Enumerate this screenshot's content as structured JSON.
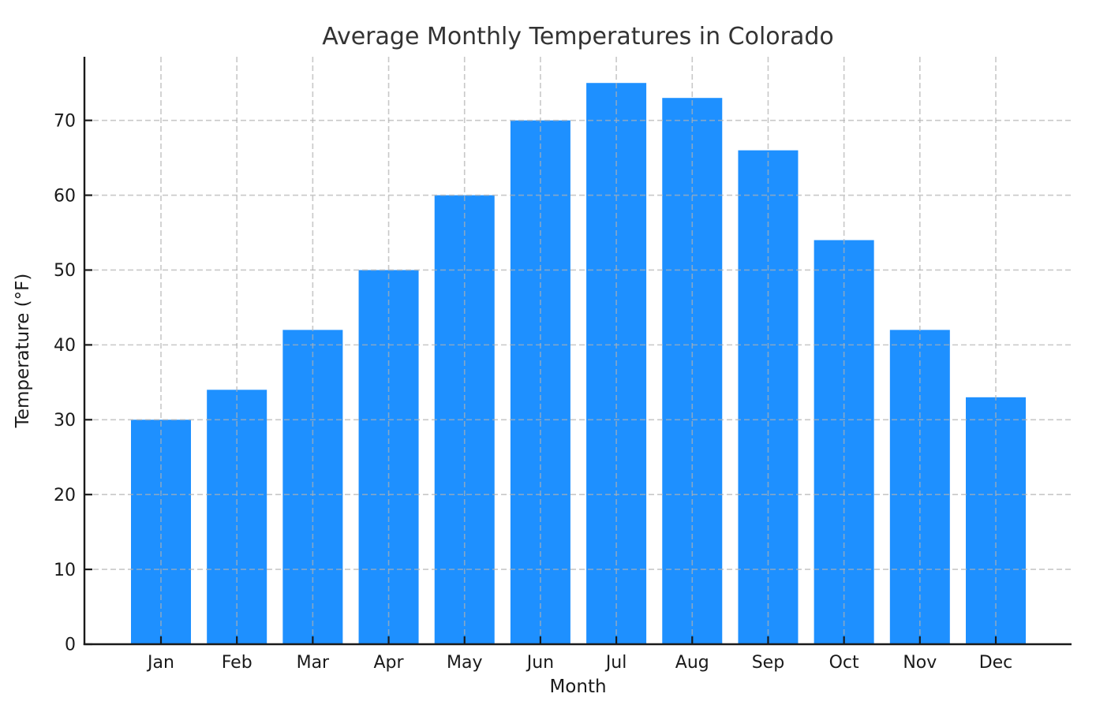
{
  "figure": {
    "background": "#ffffff"
  },
  "chart_data": {
    "type": "bar",
    "title": "Average Monthly Temperatures in Colorado",
    "xlabel": "Month",
    "ylabel": "Temperature (°F)",
    "categories": [
      "Jan",
      "Feb",
      "Mar",
      "Apr",
      "May",
      "Jun",
      "Jul",
      "Aug",
      "Sep",
      "Oct",
      "Nov",
      "Dec"
    ],
    "values": [
      30,
      34,
      42,
      50,
      60,
      70,
      75,
      73,
      66,
      54,
      42,
      33
    ],
    "yticks": [
      0,
      10,
      20,
      30,
      40,
      50,
      60,
      70
    ],
    "ylim": [
      0,
      78.5
    ],
    "bar_color": "#1E90FF",
    "grid": true,
    "grid_line_style": "dashed",
    "grid_color": "#b0b0b0",
    "axis_color": "#1a1a1a",
    "legend_position": "none"
  }
}
